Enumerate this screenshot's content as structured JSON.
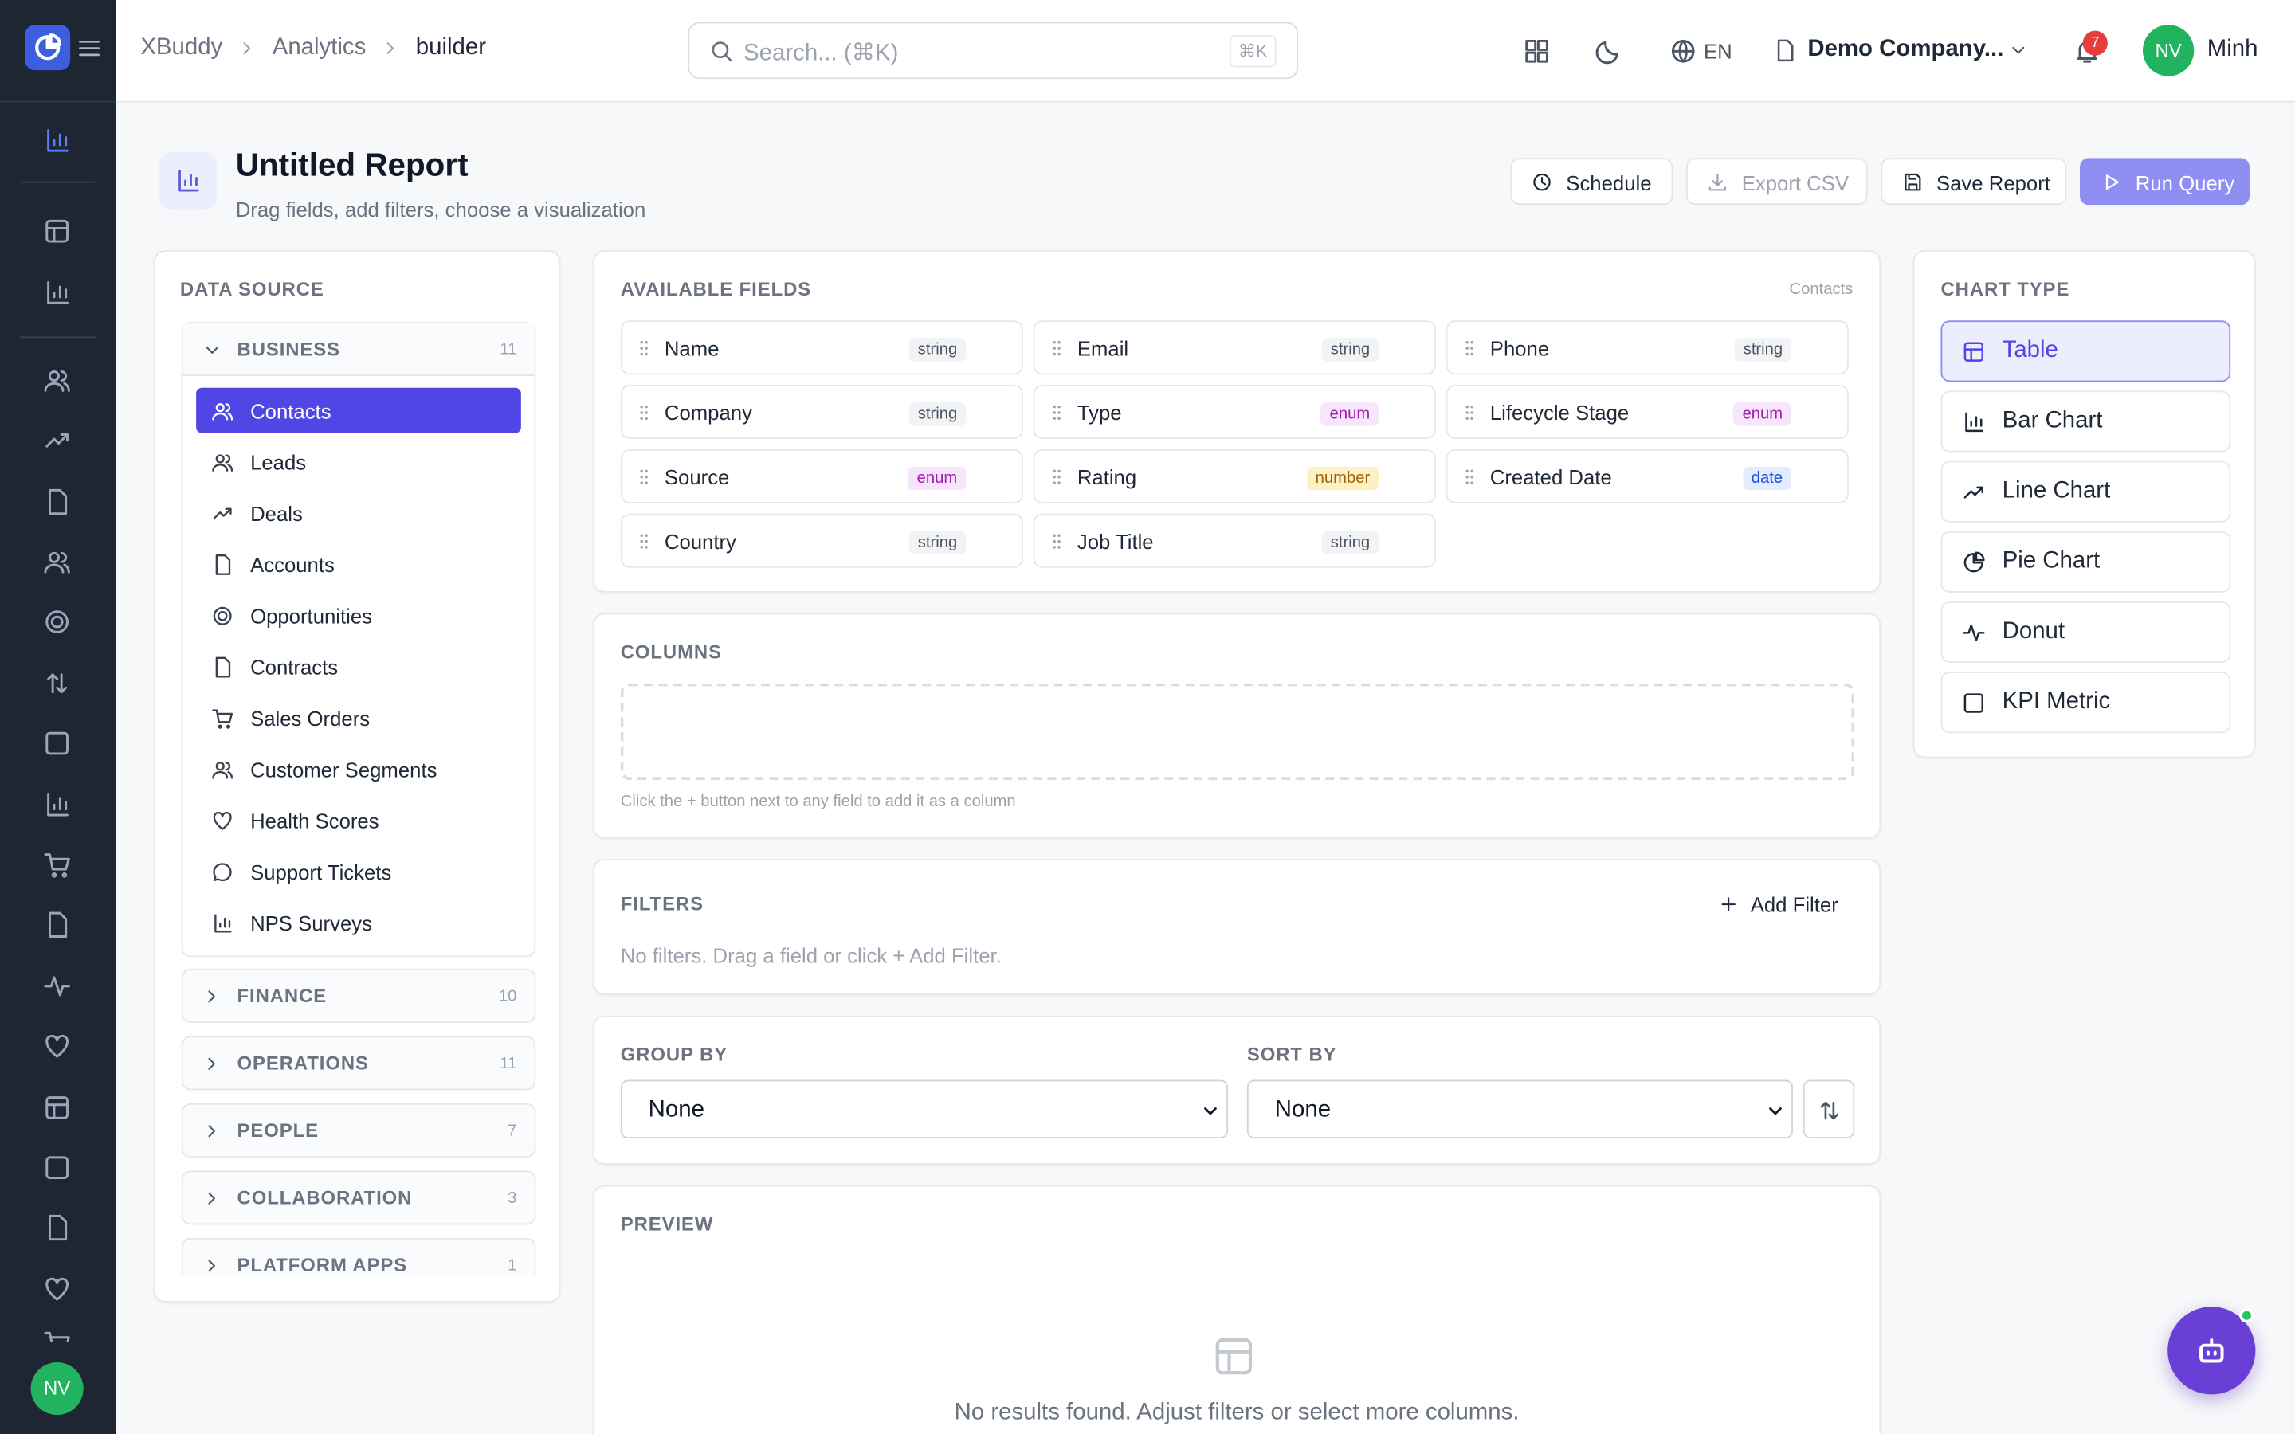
{
  "breadcrumb": [
    "XBuddy",
    "Analytics",
    "builder"
  ],
  "search": {
    "placeholder": "Search... (⌘K)",
    "shortcut": "⌘K"
  },
  "topbar": {
    "language": "EN",
    "company": "Demo Company...",
    "notifications": 7,
    "user_initials": "NV",
    "user_name": "Minh"
  },
  "page": {
    "title": "Untitled Report",
    "subtitle": "Drag fields, add filters, choose a visualization"
  },
  "actions": [
    "Schedule",
    "Export CSV",
    "Save Report",
    "Run Query"
  ],
  "data_source": {
    "title": "DATA SOURCE",
    "groups": [
      {
        "name": "BUSINESS",
        "count": 11,
        "items": [
          "Contacts",
          "Leads",
          "Deals",
          "Accounts",
          "Opportunities",
          "Contracts",
          "Sales Orders",
          "Customer Segments",
          "Health Scores",
          "Support Tickets",
          "NPS Surveys"
        ]
      },
      {
        "name": "FINANCE",
        "count": 10
      },
      {
        "name": "OPERATIONS",
        "count": 11
      },
      {
        "name": "PEOPLE",
        "count": 7
      },
      {
        "name": "COLLABORATION",
        "count": 3
      },
      {
        "name": "PLATFORM APPS",
        "count": 1
      }
    ]
  },
  "available_fields": {
    "title": "AVAILABLE FIELDS",
    "entity": "Contacts",
    "fields": [
      {
        "name": "Name",
        "type": "string"
      },
      {
        "name": "Email",
        "type": "string"
      },
      {
        "name": "Phone",
        "type": "string"
      },
      {
        "name": "Company",
        "type": "string"
      },
      {
        "name": "Type",
        "type": "enum"
      },
      {
        "name": "Lifecycle Stage",
        "type": "enum"
      },
      {
        "name": "Source",
        "type": "enum"
      },
      {
        "name": "Rating",
        "type": "number"
      },
      {
        "name": "Created Date",
        "type": "date"
      },
      {
        "name": "Country",
        "type": "string"
      },
      {
        "name": "Job Title",
        "type": "string"
      }
    ]
  },
  "columns": {
    "title": "COLUMNS",
    "hint": "Click the + button next to any field to add it as a column"
  },
  "filters": {
    "title": "FILTERS",
    "add": "Add Filter",
    "empty": "No filters. Drag a field or click + Add Filter."
  },
  "group_by": {
    "label": "GROUP BY",
    "value": "None"
  },
  "sort_by": {
    "label": "SORT BY",
    "value": "None"
  },
  "preview": {
    "title": "PREVIEW",
    "empty": "No results found. Adjust filters or select more columns."
  },
  "chart_types": {
    "title": "CHART TYPE",
    "options": [
      "Table",
      "Bar Chart",
      "Line Chart",
      "Pie Chart",
      "Donut",
      "KPI Metric"
    ]
  }
}
